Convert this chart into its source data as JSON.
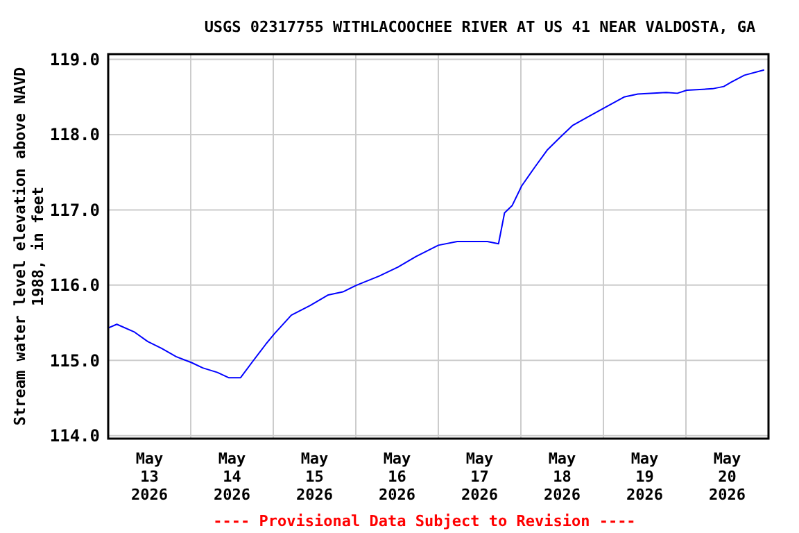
{
  "chart_data": {
    "type": "line",
    "title": "USGS 02317755 WITHLACOOCHEE RIVER AT US 41 NEAR VALDOSTA, GA",
    "ylabel": "Stream water level elevation above NAVD 1988, in feet",
    "x": [
      "2026-05-13T00:00",
      "2026-05-13T02:30",
      "2026-05-13T07:30",
      "2026-05-13T11:30",
      "2026-05-13T15:30",
      "2026-05-13T19:45",
      "2026-05-14T00:15",
      "2026-05-14T03:30",
      "2026-05-14T07:45",
      "2026-05-14T11:00",
      "2026-05-14T14:30",
      "2026-05-14T18:15",
      "2026-05-14T21:45",
      "2026-05-15T00:15",
      "2026-05-15T05:15",
      "2026-05-15T10:45",
      "2026-05-15T16:00",
      "2026-05-15T20:15",
      "2026-05-16T00:15",
      "2026-05-16T06:45",
      "2026-05-16T12:15",
      "2026-05-16T17:30",
      "2026-05-17T00:00",
      "2026-05-17T05:30",
      "2026-05-17T14:15",
      "2026-05-17T17:30",
      "2026-05-17T19:15",
      "2026-05-17T21:30",
      "2026-05-18T00:15",
      "2026-05-18T04:15",
      "2026-05-18T07:45",
      "2026-05-18T11:45",
      "2026-05-18T15:00",
      "2026-05-18T19:15",
      "2026-05-19T00:00",
      "2026-05-19T06:00",
      "2026-05-19T10:00",
      "2026-05-19T18:15",
      "2026-05-19T21:30",
      "2026-05-20T00:15",
      "2026-05-20T07:45",
      "2026-05-20T11:00",
      "2026-05-20T13:15",
      "2026-05-20T17:00",
      "2026-05-20T22:45"
    ],
    "series": [
      {
        "color": "#0000ff",
        "values": [
          115.43,
          115.48,
          115.38,
          115.25,
          115.16,
          115.05,
          114.97,
          114.9,
          114.84,
          114.77,
          114.77,
          115.0,
          115.21,
          115.35,
          115.6,
          115.73,
          115.87,
          115.91,
          116.0,
          116.12,
          116.24,
          116.38,
          116.53,
          116.58,
          116.58,
          116.55,
          116.96,
          117.06,
          117.32,
          117.58,
          117.8,
          117.98,
          118.12,
          118.23,
          118.35,
          118.5,
          118.54,
          118.56,
          118.55,
          118.59,
          118.61,
          118.64,
          118.7,
          118.79,
          118.86
        ]
      }
    ],
    "xlim": [
      "2026-05-13T00:00",
      "2026-05-21T00:00"
    ],
    "xticks": [
      {
        "value": "2026-05-13T12:00",
        "label": "May\n13\n2026"
      },
      {
        "value": "2026-05-14T00:00",
        "label": null
      },
      {
        "value": "2026-05-14T12:00",
        "label": "May\n14\n2026"
      },
      {
        "value": "2026-05-15T00:00",
        "label": null
      },
      {
        "value": "2026-05-15T12:00",
        "label": "May\n15\n2026"
      },
      {
        "value": "2026-05-16T00:00",
        "label": null
      },
      {
        "value": "2026-05-16T12:00",
        "label": "May\n16\n2026"
      },
      {
        "value": "2026-05-17T00:00",
        "label": null
      },
      {
        "value": "2026-05-17T12:00",
        "label": "May\n17\n2026"
      },
      {
        "value": "2026-05-18T00:00",
        "label": null
      },
      {
        "value": "2026-05-18T12:00",
        "label": "May\n18\n2026"
      },
      {
        "value": "2026-05-19T00:00",
        "label": null
      },
      {
        "value": "2026-05-19T12:00",
        "label": "May\n19\n2026"
      },
      {
        "value": "2026-05-20T00:00",
        "label": null
      },
      {
        "value": "2026-05-20T12:00",
        "label": "May\n20\n2026"
      }
    ],
    "ylim": [
      113.96,
      119.07
    ],
    "yticks": [
      {
        "value": 114,
        "label": "114.0"
      },
      {
        "value": 115,
        "label": "115.0"
      },
      {
        "value": 116,
        "label": "116.0"
      },
      {
        "value": 117,
        "label": "117.0"
      },
      {
        "value": 118,
        "label": "118.0"
      },
      {
        "value": 119,
        "label": "119.0"
      }
    ],
    "grid": true,
    "marker": "none",
    "line_style": "solid",
    "annotations": [
      "---- Provisional Data Subject to Revision ----"
    ]
  }
}
